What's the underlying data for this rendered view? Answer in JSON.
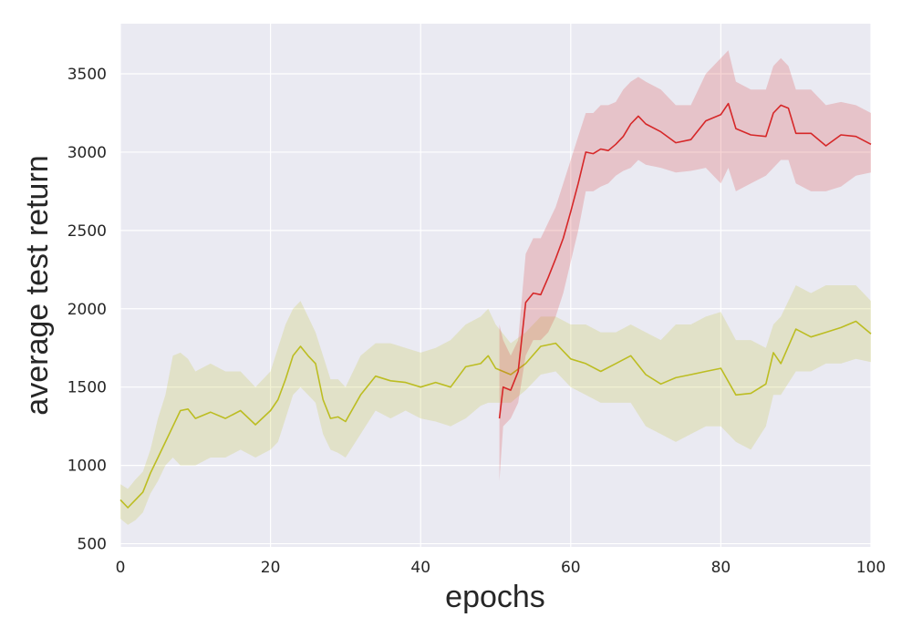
{
  "chart_data": {
    "type": "line",
    "title": "",
    "xlabel": "epochs",
    "ylabel": "average test return",
    "xlim": [
      0,
      100
    ],
    "ylim": [
      480,
      3820
    ],
    "xticks": [
      0,
      20,
      40,
      60,
      80,
      100
    ],
    "yticks": [
      500,
      1000,
      1500,
      2000,
      2500,
      3000,
      3500
    ],
    "grid": true,
    "background": "#eaeaf2",
    "series": [
      {
        "color": "#bcbd22",
        "band_opacity": 0.2,
        "x": [
          0,
          1,
          2,
          3,
          4,
          5,
          6,
          7,
          8,
          9,
          10,
          12,
          14,
          16,
          18,
          20,
          21,
          22,
          23,
          24,
          25,
          26,
          27,
          28,
          29,
          30,
          32,
          34,
          36,
          38,
          40,
          42,
          44,
          46,
          48,
          49,
          50,
          52,
          54,
          56,
          58,
          60,
          62,
          64,
          66,
          68,
          70,
          72,
          74,
          76,
          78,
          80,
          82,
          84,
          86,
          87,
          88,
          90,
          92,
          94,
          96,
          98,
          100
        ],
        "y": [
          780,
          730,
          780,
          830,
          950,
          1050,
          1150,
          1250,
          1350,
          1360,
          1300,
          1340,
          1300,
          1350,
          1260,
          1350,
          1420,
          1550,
          1700,
          1760,
          1700,
          1650,
          1420,
          1300,
          1310,
          1280,
          1450,
          1570,
          1540,
          1530,
          1500,
          1530,
          1500,
          1630,
          1650,
          1700,
          1620,
          1580,
          1650,
          1760,
          1780,
          1680,
          1650,
          1600,
          1650,
          1700,
          1580,
          1520,
          1560,
          1580,
          1600,
          1620,
          1450,
          1460,
          1520,
          1720,
          1650,
          1870,
          1820,
          1850,
          1880,
          1920,
          1840
        ],
        "lower": [
          660,
          620,
          650,
          700,
          820,
          900,
          1000,
          1050,
          1000,
          1000,
          1000,
          1050,
          1050,
          1100,
          1050,
          1100,
          1150,
          1300,
          1450,
          1500,
          1450,
          1400,
          1200,
          1100,
          1080,
          1050,
          1200,
          1350,
          1300,
          1350,
          1300,
          1280,
          1250,
          1300,
          1380,
          1400,
          1400,
          1400,
          1480,
          1580,
          1600,
          1500,
          1450,
          1400,
          1400,
          1400,
          1250,
          1200,
          1150,
          1200,
          1250,
          1250,
          1150,
          1100,
          1250,
          1450,
          1450,
          1600,
          1600,
          1650,
          1650,
          1680,
          1660
        ],
        "upper": [
          880,
          850,
          910,
          960,
          1100,
          1300,
          1450,
          1700,
          1720,
          1680,
          1600,
          1650,
          1600,
          1600,
          1500,
          1600,
          1750,
          1900,
          2000,
          2050,
          1950,
          1850,
          1700,
          1550,
          1550,
          1500,
          1700,
          1780,
          1780,
          1750,
          1720,
          1750,
          1800,
          1900,
          1950,
          2000,
          1900,
          1780,
          1850,
          1950,
          1950,
          1900,
          1900,
          1850,
          1850,
          1900,
          1850,
          1800,
          1900,
          1900,
          1950,
          1980,
          1800,
          1800,
          1750,
          1900,
          1950,
          2150,
          2100,
          2150,
          2150,
          2150,
          2050
        ]
      },
      {
        "color": "#d62728",
        "band_opacity": 0.2,
        "x": [
          50.5,
          51,
          52,
          53,
          54,
          55,
          56,
          57,
          58,
          59,
          60,
          61,
          62,
          63,
          64,
          65,
          66,
          67,
          68,
          69,
          70,
          72,
          74,
          76,
          78,
          80,
          81,
          82,
          84,
          86,
          87,
          88,
          89,
          90,
          92,
          94,
          96,
          98,
          100
        ],
        "y": [
          1300,
          1500,
          1480,
          1600,
          2040,
          2100,
          2090,
          2200,
          2320,
          2450,
          2620,
          2800,
          3000,
          2990,
          3020,
          3010,
          3050,
          3100,
          3180,
          3230,
          3180,
          3130,
          3060,
          3080,
          3200,
          3240,
          3310,
          3150,
          3110,
          3100,
          3250,
          3300,
          3280,
          3120,
          3120,
          3040,
          3110,
          3100,
          3050
        ],
        "lower": [
          900,
          1250,
          1300,
          1400,
          1700,
          1800,
          1800,
          1850,
          1950,
          2100,
          2300,
          2500,
          2750,
          2750,
          2780,
          2800,
          2850,
          2880,
          2900,
          2950,
          2920,
          2900,
          2870,
          2880,
          2900,
          2800,
          2900,
          2750,
          2800,
          2850,
          2900,
          2950,
          2950,
          2800,
          2750,
          2750,
          2780,
          2850,
          2870
        ],
        "upper": [
          1900,
          1800,
          1700,
          1800,
          2350,
          2450,
          2450,
          2550,
          2650,
          2800,
          2950,
          3100,
          3250,
          3250,
          3300,
          3300,
          3320,
          3400,
          3450,
          3480,
          3450,
          3400,
          3300,
          3300,
          3500,
          3600,
          3650,
          3450,
          3400,
          3400,
          3550,
          3600,
          3550,
          3400,
          3400,
          3300,
          3320,
          3300,
          3250
        ]
      }
    ]
  }
}
